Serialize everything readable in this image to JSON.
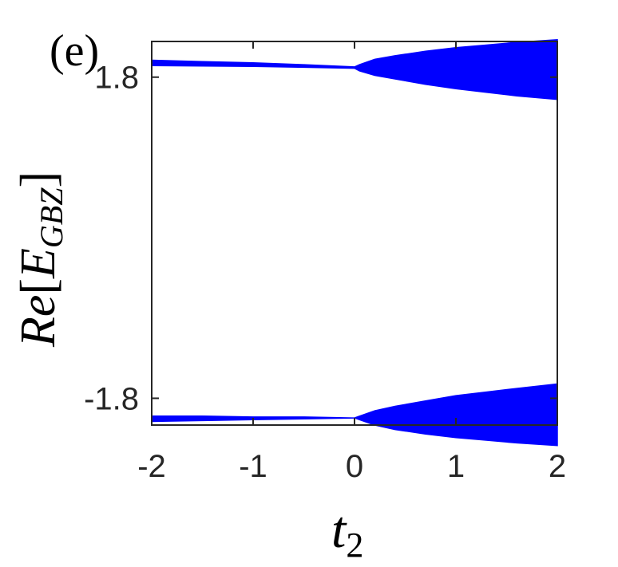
{
  "panel_label": "(e)",
  "chart_data": {
    "type": "area",
    "xlabel": {
      "main": "t",
      "sub": "2"
    },
    "ylabel": {
      "main": "Re",
      "sub": "GBZ",
      "bracket_open": "[",
      "bracket_close": "]",
      "symbol": "E"
    },
    "xlim": [
      -2,
      2
    ],
    "ylim": [
      -2.1,
      2.2
    ],
    "xticks": [
      -2,
      -1,
      0,
      1,
      2
    ],
    "xtick_labels": [
      "-2",
      "-1",
      "0",
      "1",
      "2"
    ],
    "yticks": [
      -1.8,
      1.8
    ],
    "ytick_labels": [
      "-1.8",
      "1.8"
    ],
    "grid": false,
    "color": "#0000ff",
    "series": [
      {
        "band": "upper",
        "x": [
          -2.0,
          -1.5,
          -1.0,
          -0.5,
          0.0,
          0.05,
          0.2,
          0.4,
          0.7,
          1.0,
          1.3,
          1.6,
          2.0
        ],
        "low": [
          1.93,
          1.925,
          1.92,
          1.91,
          1.9,
          1.87,
          1.82,
          1.78,
          1.72,
          1.67,
          1.63,
          1.59,
          1.55
        ],
        "high": [
          1.99,
          1.975,
          1.96,
          1.94,
          1.915,
          1.94,
          2.0,
          2.04,
          2.09,
          2.13,
          2.16,
          2.19,
          2.22
        ]
      },
      {
        "band": "lower",
        "x": [
          -2.0,
          -1.5,
          -1.0,
          -0.5,
          0.0,
          0.05,
          0.2,
          0.4,
          0.7,
          1.0,
          1.3,
          1.6,
          2.0
        ],
        "low": [
          -2.06,
          -2.05,
          -2.04,
          -2.03,
          -2.02,
          -2.04,
          -2.1,
          -2.15,
          -2.2,
          -2.24,
          -2.27,
          -2.3,
          -2.33
        ],
        "high": [
          -2.0,
          -2.0,
          -2.01,
          -2.01,
          -2.02,
          -2.0,
          -1.94,
          -1.89,
          -1.83,
          -1.77,
          -1.73,
          -1.69,
          -1.64
        ]
      }
    ]
  }
}
